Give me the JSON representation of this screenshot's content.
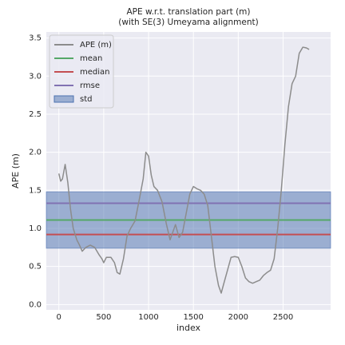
{
  "chart_data": {
    "type": "line",
    "title": "APE w.r.t. translation part (m)",
    "subtitle": "(with SE(3) Umeyama alignment)",
    "x_label": "index",
    "y_label": "APE (m)",
    "x": [
      0,
      20,
      40,
      70,
      100,
      130,
      160,
      200,
      230,
      260,
      300,
      350,
      400,
      450,
      480,
      500,
      530,
      580,
      620,
      650,
      680,
      720,
      760,
      800,
      850,
      900,
      940,
      970,
      1000,
      1030,
      1060,
      1100,
      1150,
      1200,
      1240,
      1270,
      1300,
      1340,
      1380,
      1420,
      1460,
      1500,
      1540,
      1580,
      1620,
      1660,
      1700,
      1740,
      1780,
      1810,
      1840,
      1880,
      1920,
      1960,
      2000,
      2040,
      2080,
      2120,
      2160,
      2200,
      2240,
      2280,
      2320,
      2360,
      2400,
      2440,
      2480,
      2520,
      2560,
      2600,
      2640,
      2680,
      2720,
      2760,
      2790
    ],
    "series": [
      {
        "name": "APE (m)",
        "color": "#8c8c8c",
        "values": [
          1.72,
          1.62,
          1.65,
          1.84,
          1.6,
          1.25,
          1.0,
          0.85,
          0.78,
          0.7,
          0.75,
          0.78,
          0.75,
          0.65,
          0.6,
          0.55,
          0.62,
          0.62,
          0.55,
          0.42,
          0.4,
          0.6,
          0.9,
          1.0,
          1.1,
          1.4,
          1.65,
          2.0,
          1.95,
          1.7,
          1.55,
          1.5,
          1.35,
          1.05,
          0.85,
          0.95,
          1.05,
          0.88,
          0.95,
          1.2,
          1.45,
          1.55,
          1.52,
          1.5,
          1.45,
          1.3,
          0.9,
          0.5,
          0.25,
          0.15,
          0.28,
          0.45,
          0.62,
          0.63,
          0.62,
          0.5,
          0.35,
          0.3,
          0.28,
          0.3,
          0.32,
          0.38,
          0.42,
          0.45,
          0.6,
          1.0,
          1.5,
          2.1,
          2.6,
          2.9,
          3.0,
          3.3,
          3.38,
          3.37,
          3.35
        ]
      }
    ],
    "stats": [
      {
        "name": "mean",
        "color": "#55a868",
        "value": 1.11
      },
      {
        "name": "median",
        "color": "#c44e52",
        "value": 0.92
      },
      {
        "name": "rmse",
        "color": "#8172b2",
        "value": 1.33
      }
    ],
    "std": {
      "name": "std",
      "color": "#4c72b0",
      "value": 0.37
    },
    "xlim": [
      -140,
      3030
    ],
    "ylim": [
      -0.07,
      3.58
    ],
    "xticks": [
      0,
      500,
      1000,
      1500,
      2000,
      2500
    ],
    "yticks": [
      {
        "value": 0,
        "label": "0.0"
      },
      {
        "value": 0.5,
        "label": "0.5"
      },
      {
        "value": 1,
        "label": "1.0"
      },
      {
        "value": 1.5,
        "label": "1.5"
      },
      {
        "value": 2,
        "label": "2.0"
      },
      {
        "value": 2.5,
        "label": "2.5"
      },
      {
        "value": 3,
        "label": "3.0"
      },
      {
        "value": 3.5,
        "label": "3.5"
      }
    ],
    "grid": true,
    "legend": "upper left"
  }
}
